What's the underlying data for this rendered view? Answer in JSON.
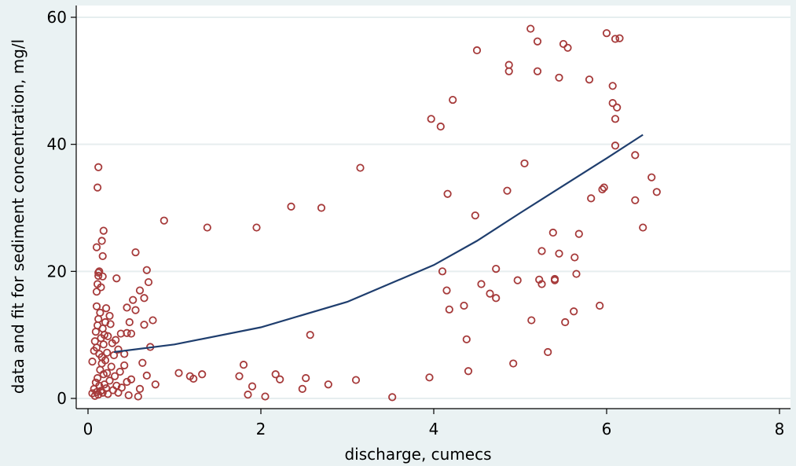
{
  "chart_data": {
    "type": "scatter",
    "title": "",
    "xlabel": "discharge, cumecs",
    "ylabel": "data and fit for sediment concentration, mg/l",
    "xlim": [
      0,
      8
    ],
    "ylim": [
      0,
      60
    ],
    "x_ticks": [
      "0",
      "2",
      "4",
      "6",
      "8"
    ],
    "y_ticks": [
      "0",
      "20",
      "40",
      "60"
    ],
    "grid": true,
    "colors": {
      "background": "#eaf2f3",
      "plot_background": "#ffffff",
      "grid": "#e6eeef",
      "points": "#a63a3a",
      "fit_line": "#1f3e6e"
    },
    "points": [
      [
        0.05,
        0.8
      ],
      [
        0.07,
        1.5
      ],
      [
        0.08,
        0.4
      ],
      [
        0.09,
        2.5
      ],
      [
        0.1,
        1.0
      ],
      [
        0.11,
        3.2
      ],
      [
        0.12,
        0.6
      ],
      [
        0.13,
        2.0
      ],
      [
        0.14,
        4.5
      ],
      [
        0.15,
        1.2
      ],
      [
        0.16,
        5.5
      ],
      [
        0.17,
        0.9
      ],
      [
        0.18,
        3.8
      ],
      [
        0.19,
        2.2
      ],
      [
        0.2,
        6.0
      ],
      [
        0.21,
        1.6
      ],
      [
        0.22,
        4.0
      ],
      [
        0.23,
        0.7
      ],
      [
        0.25,
        2.8
      ],
      [
        0.27,
        5.0
      ],
      [
        0.29,
        1.3
      ],
      [
        0.31,
        3.5
      ],
      [
        0.33,
        2.0
      ],
      [
        0.35,
        0.9
      ],
      [
        0.37,
        4.2
      ],
      [
        0.39,
        1.7
      ],
      [
        0.42,
        5.2
      ],
      [
        0.45,
        2.6
      ],
      [
        0.47,
        0.5
      ],
      [
        0.5,
        3.0
      ],
      [
        0.05,
        5.8
      ],
      [
        0.07,
        7.5
      ],
      [
        0.08,
        9.0
      ],
      [
        0.09,
        10.5
      ],
      [
        0.1,
        8.0
      ],
      [
        0.11,
        11.5
      ],
      [
        0.12,
        12.5
      ],
      [
        0.13,
        7.0
      ],
      [
        0.14,
        13.5
      ],
      [
        0.15,
        9.5
      ],
      [
        0.16,
        6.5
      ],
      [
        0.17,
        11.0
      ],
      [
        0.18,
        8.5
      ],
      [
        0.19,
        10.0
      ],
      [
        0.2,
        12.0
      ],
      [
        0.21,
        14.2
      ],
      [
        0.22,
        7.2
      ],
      [
        0.23,
        9.8
      ],
      [
        0.25,
        13.0
      ],
      [
        0.26,
        11.7
      ],
      [
        0.28,
        8.7
      ],
      [
        0.3,
        6.8
      ],
      [
        0.32,
        9.2
      ],
      [
        0.35,
        7.7
      ],
      [
        0.38,
        10.2
      ],
      [
        0.42,
        7.0
      ],
      [
        0.45,
        10.3
      ],
      [
        0.48,
        12.0
      ],
      [
        0.5,
        10.2
      ],
      [
        0.52,
        15.5
      ],
      [
        0.1,
        14.5
      ],
      [
        0.1,
        16.8
      ],
      [
        0.11,
        18.0
      ],
      [
        0.12,
        19.3
      ],
      [
        0.12,
        19.8
      ],
      [
        0.13,
        20.0
      ],
      [
        0.15,
        17.5
      ],
      [
        0.17,
        19.2
      ],
      [
        0.17,
        22.4
      ],
      [
        0.16,
        24.8
      ],
      [
        0.18,
        26.4
      ],
      [
        0.1,
        23.8
      ],
      [
        0.11,
        33.2
      ],
      [
        0.12,
        36.4
      ],
      [
        0.33,
        18.9
      ],
      [
        0.55,
        23.0
      ],
      [
        0.6,
        17.0
      ],
      [
        0.65,
        15.8
      ],
      [
        0.68,
        20.2
      ],
      [
        0.7,
        18.3
      ],
      [
        0.45,
        14.3
      ],
      [
        0.55,
        13.9
      ],
      [
        0.72,
        8.1
      ],
      [
        0.75,
        12.3
      ],
      [
        0.65,
        11.6
      ],
      [
        0.63,
        5.6
      ],
      [
        0.68,
        3.6
      ],
      [
        0.6,
        1.5
      ],
      [
        0.58,
        0.3
      ],
      [
        0.78,
        2.2
      ],
      [
        0.88,
        28.0
      ],
      [
        1.05,
        4.0
      ],
      [
        1.18,
        3.5
      ],
      [
        1.22,
        3.1
      ],
      [
        1.32,
        3.8
      ],
      [
        1.38,
        26.9
      ],
      [
        1.75,
        3.5
      ],
      [
        1.8,
        5.3
      ],
      [
        1.85,
        0.6
      ],
      [
        1.9,
        1.9
      ],
      [
        1.95,
        26.9
      ],
      [
        2.05,
        0.3
      ],
      [
        2.17,
        3.8
      ],
      [
        2.22,
        3.0
      ],
      [
        2.35,
        30.2
      ],
      [
        2.48,
        1.5
      ],
      [
        2.52,
        3.2
      ],
      [
        2.57,
        10.0
      ],
      [
        2.7,
        30.0
      ],
      [
        2.78,
        2.2
      ],
      [
        3.1,
        2.9
      ],
      [
        3.15,
        36.3
      ],
      [
        3.52,
        0.2
      ],
      [
        3.95,
        3.3
      ],
      [
        3.97,
        44.0
      ],
      [
        4.08,
        42.8
      ],
      [
        4.1,
        20.0
      ],
      [
        4.15,
        17.0
      ],
      [
        4.16,
        32.2
      ],
      [
        4.18,
        14.0
      ],
      [
        4.22,
        47.0
      ],
      [
        4.35,
        14.6
      ],
      [
        4.38,
        9.3
      ],
      [
        4.4,
        4.3
      ],
      [
        4.48,
        28.8
      ],
      [
        4.5,
        54.8
      ],
      [
        4.55,
        18.0
      ],
      [
        4.65,
        16.5
      ],
      [
        4.72,
        15.8
      ],
      [
        4.72,
        20.4
      ],
      [
        4.85,
        32.7
      ],
      [
        4.87,
        52.5
      ],
      [
        4.87,
        51.5
      ],
      [
        4.92,
        5.5
      ],
      [
        4.97,
        18.6
      ],
      [
        5.05,
        37.0
      ],
      [
        5.12,
        58.2
      ],
      [
        5.13,
        12.3
      ],
      [
        5.2,
        56.2
      ],
      [
        5.2,
        51.5
      ],
      [
        5.22,
        18.7
      ],
      [
        5.25,
        23.2
      ],
      [
        5.25,
        18.0
      ],
      [
        5.32,
        7.3
      ],
      [
        5.38,
        26.1
      ],
      [
        5.4,
        18.6
      ],
      [
        5.4,
        18.8
      ],
      [
        5.45,
        22.8
      ],
      [
        5.45,
        50.5
      ],
      [
        5.5,
        55.8
      ],
      [
        5.52,
        12.0
      ],
      [
        5.55,
        55.2
      ],
      [
        5.62,
        13.7
      ],
      [
        5.63,
        22.2
      ],
      [
        5.65,
        19.6
      ],
      [
        5.68,
        25.9
      ],
      [
        5.8,
        50.2
      ],
      [
        5.82,
        31.5
      ],
      [
        5.92,
        14.6
      ],
      [
        5.95,
        32.9
      ],
      [
        5.97,
        33.2
      ],
      [
        6.0,
        57.5
      ],
      [
        6.07,
        49.2
      ],
      [
        6.07,
        46.5
      ],
      [
        6.1,
        56.6
      ],
      [
        6.1,
        44.0
      ],
      [
        6.1,
        39.8
      ],
      [
        6.12,
        45.8
      ],
      [
        6.15,
        56.7
      ],
      [
        6.33,
        38.3
      ],
      [
        6.33,
        31.2
      ],
      [
        6.42,
        26.9
      ],
      [
        6.52,
        34.8
      ],
      [
        6.58,
        32.5
      ]
    ],
    "fit_line": {
      "type": "exponential",
      "x_range": [
        0.3,
        6.42
      ],
      "points": [
        [
          0.3,
          7.3
        ],
        [
          1,
          8.5
        ],
        [
          2,
          11.2
        ],
        [
          3,
          15.2
        ],
        [
          4,
          21.0
        ],
        [
          4.5,
          24.8
        ],
        [
          5,
          29.2
        ],
        [
          5.5,
          33.5
        ],
        [
          6,
          37.8
        ],
        [
          6.42,
          41.5
        ]
      ]
    }
  }
}
